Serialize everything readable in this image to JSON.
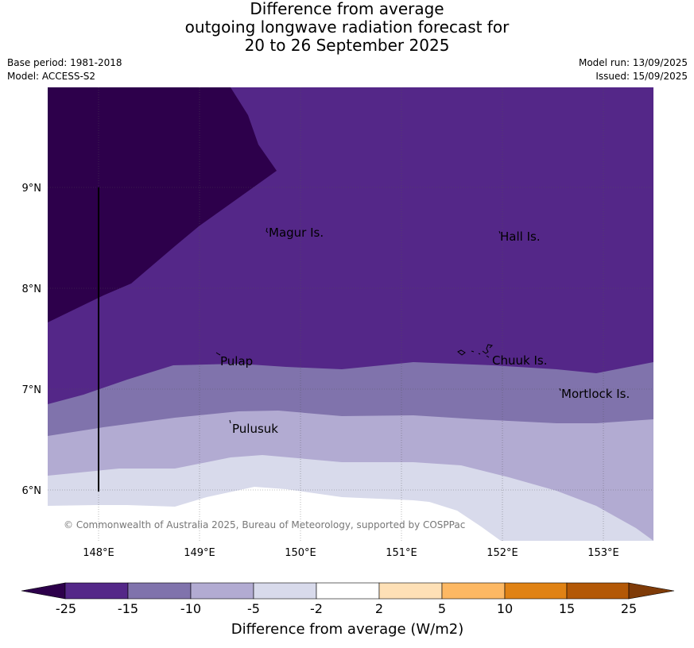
{
  "title": {
    "line1": "Difference from average",
    "line2": "outgoing longwave radiation forecast for",
    "line3": "20 to 26 September 2025"
  },
  "meta_left": {
    "base_period": "Base period: 1981-2018",
    "model": "Model: ACCESS-S2"
  },
  "meta_right": {
    "model_run": "Model run: 13/09/2025",
    "issued": "Issued: 15/09/2025"
  },
  "map": {
    "lon_range": [
      147.5,
      153.5
    ],
    "lat_range": [
      5.5,
      10.0
    ],
    "lat_labels": [
      "9°N",
      "8°N",
      "7°N",
      "6°N"
    ],
    "lon_labels": [
      "148°E",
      "149°E",
      "150°E",
      "151°E",
      "152°E",
      "153°E"
    ],
    "places": [
      "Magur Is.",
      "Hall Is.",
      "Pulap",
      "Chuuk Is.",
      "Mortlock Is.",
      "Pulusuk"
    ],
    "copyright": "© Commonwealth of Australia 2025, Bureau of Meteorology, supported by COSPPac",
    "colors": {
      "lt_-25": "#2d004b",
      "-25_-15": "#542788",
      "-15_-10": "#8073ac",
      "-10_-5": "#b2abd2",
      "-5_-2": "#d8daeb",
      "-2_2": "#ffffff"
    }
  },
  "colorbar": {
    "ticks": [
      "-25",
      "-15",
      "-10",
      "-5",
      "-2",
      "2",
      "5",
      "10",
      "15",
      "25"
    ],
    "colors": [
      "#2d004b",
      "#542788",
      "#8073ac",
      "#b2abd2",
      "#d8daeb",
      "#ffffff",
      "#fee0b6",
      "#fdb863",
      "#e08214",
      "#b35806",
      "#7f3b08"
    ],
    "label": "Difference from average (W/m2)"
  }
}
